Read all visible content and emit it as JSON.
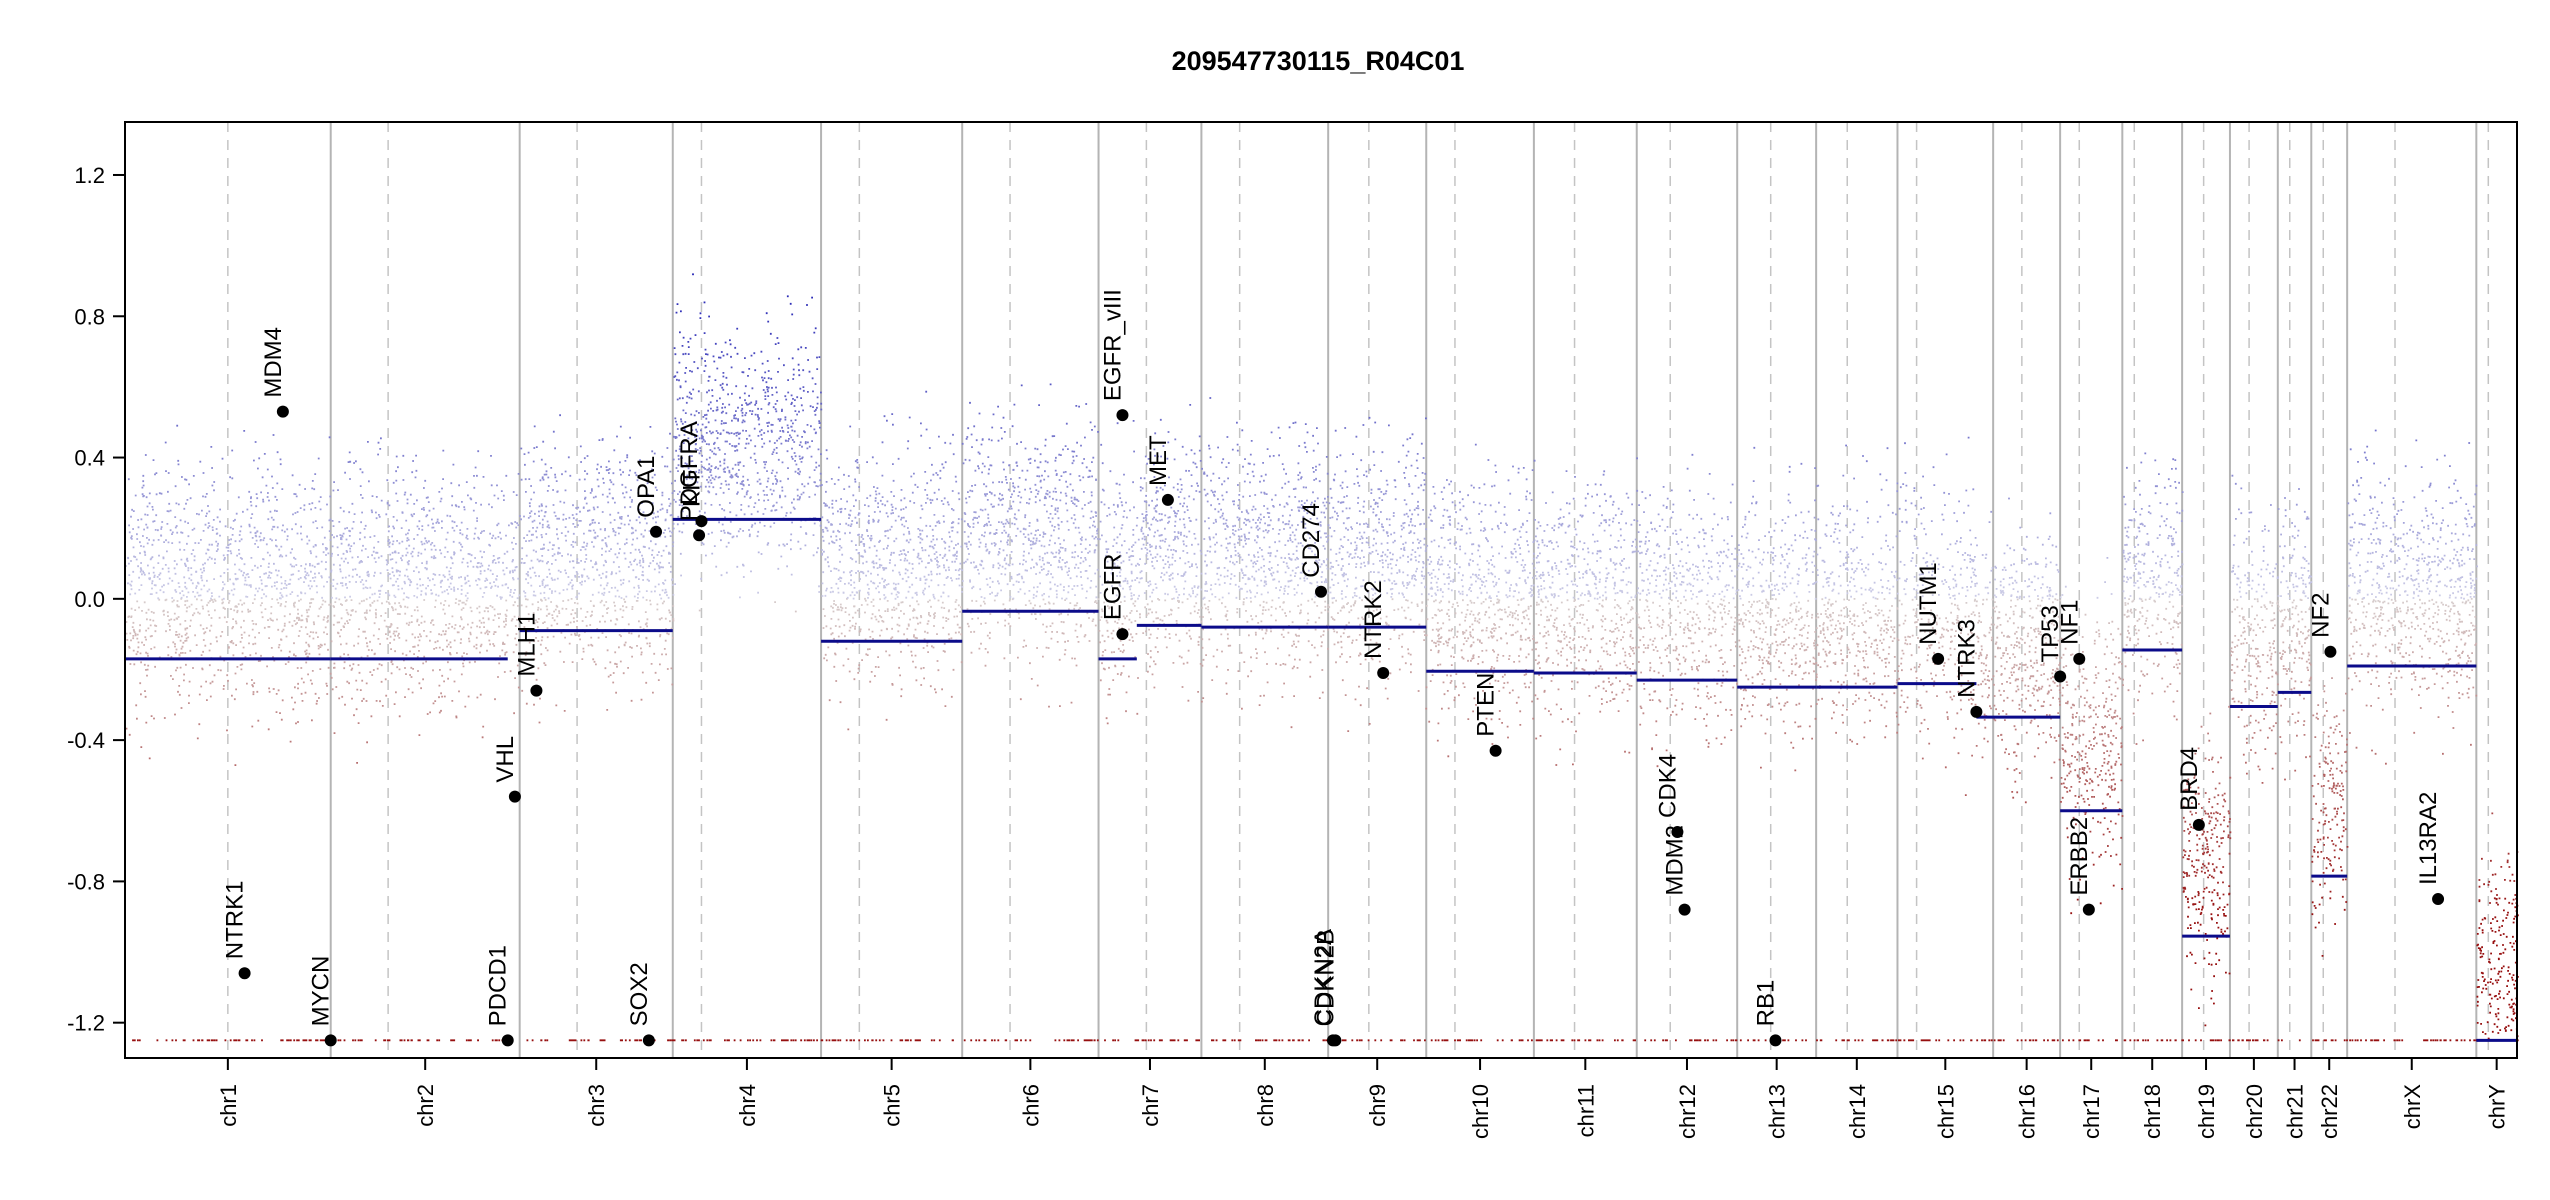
{
  "chart_data": {
    "type": "scatter",
    "title": "209547730115_R04C01",
    "xlabel": "",
    "ylabel": "",
    "ylim": [
      -1.3,
      1.35
    ],
    "y_ticks": [
      -1.2,
      -0.8,
      -0.4,
      0.0,
      0.4,
      0.8,
      1.2
    ],
    "y_tick_labels": [
      "-1.2",
      "-0.8",
      "-0.4",
      "0.0",
      "0.4",
      "0.8",
      "1.2"
    ],
    "grid": false,
    "colors": {
      "gain": "#2b2bb8",
      "loss": "#a01010",
      "segment": "#0b0b8a",
      "chrom_border": "#b4b4b4",
      "centromere": "#c4c4c4",
      "gene_dot": "#000000"
    },
    "chromosomes": [
      {
        "name": "chr1",
        "start": 0.0,
        "end": 0.086,
        "centromere": 0.043
      },
      {
        "name": "chr2",
        "start": 0.086,
        "end": 0.165,
        "centromere": 0.11
      },
      {
        "name": "chr3",
        "start": 0.165,
        "end": 0.229,
        "centromere": 0.189
      },
      {
        "name": "chr4",
        "start": 0.229,
        "end": 0.291,
        "centromere": 0.241
      },
      {
        "name": "chr5",
        "start": 0.291,
        "end": 0.35,
        "centromere": 0.307
      },
      {
        "name": "chr6",
        "start": 0.35,
        "end": 0.407,
        "centromere": 0.37
      },
      {
        "name": "chr7",
        "start": 0.407,
        "end": 0.45,
        "centromere": 0.427
      },
      {
        "name": "chr8",
        "start": 0.45,
        "end": 0.503,
        "centromere": 0.466
      },
      {
        "name": "chr9",
        "start": 0.503,
        "end": 0.544,
        "centromere": 0.52
      },
      {
        "name": "chr10",
        "start": 0.544,
        "end": 0.589,
        "centromere": 0.556
      },
      {
        "name": "chr11",
        "start": 0.589,
        "end": 0.632,
        "centromere": 0.606
      },
      {
        "name": "chr12",
        "start": 0.632,
        "end": 0.674,
        "centromere": 0.646
      },
      {
        "name": "chr13",
        "start": 0.674,
        "end": 0.707,
        "centromere": 0.688
      },
      {
        "name": "chr14",
        "start": 0.707,
        "end": 0.741,
        "centromere": 0.72
      },
      {
        "name": "chr15",
        "start": 0.741,
        "end": 0.781,
        "centromere": 0.749
      },
      {
        "name": "chr16",
        "start": 0.781,
        "end": 0.809,
        "centromere": 0.793
      },
      {
        "name": "chr17",
        "start": 0.809,
        "end": 0.835,
        "centromere": 0.817
      },
      {
        "name": "chr18",
        "start": 0.835,
        "end": 0.86,
        "centromere": 0.84
      },
      {
        "name": "chr19",
        "start": 0.86,
        "end": 0.88,
        "centromere": 0.869
      },
      {
        "name": "chr20",
        "start": 0.88,
        "end": 0.9,
        "centromere": 0.888
      },
      {
        "name": "chr21",
        "start": 0.9,
        "end": 0.914,
        "centromere": 0.905
      },
      {
        "name": "chr22",
        "start": 0.914,
        "end": 0.929,
        "centromere": 0.919
      },
      {
        "name": "chrX",
        "start": 0.929,
        "end": 0.983,
        "centromere": 0.949
      },
      {
        "name": "chrY",
        "start": 0.983,
        "end": 1.0,
        "centromere": 0.988
      }
    ],
    "segments": [
      {
        "chrom": "chr1",
        "start": 0.0,
        "end": 0.086,
        "value": -0.17
      },
      {
        "chrom": "chr2",
        "start": 0.086,
        "end": 0.16,
        "value": -0.17
      },
      {
        "chrom": "chr3",
        "start": 0.165,
        "end": 0.229,
        "value": -0.09
      },
      {
        "chrom": "chr4",
        "start": 0.229,
        "end": 0.291,
        "value": 0.225
      },
      {
        "chrom": "chr5",
        "start": 0.291,
        "end": 0.35,
        "value": -0.12
      },
      {
        "chrom": "chr6",
        "start": 0.35,
        "end": 0.407,
        "value": -0.035
      },
      {
        "chrom": "chr7",
        "start": 0.407,
        "end": 0.423,
        "value": -0.17
      },
      {
        "chrom": "chr7",
        "start": 0.423,
        "end": 0.45,
        "value": -0.075
      },
      {
        "chrom": "chr8",
        "start": 0.45,
        "end": 0.503,
        "value": -0.08
      },
      {
        "chrom": "chr9",
        "start": 0.503,
        "end": 0.544,
        "value": -0.08
      },
      {
        "chrom": "chr10",
        "start": 0.544,
        "end": 0.589,
        "value": -0.205
      },
      {
        "chrom": "chr11",
        "start": 0.589,
        "end": 0.632,
        "value": -0.21
      },
      {
        "chrom": "chr12",
        "start": 0.632,
        "end": 0.674,
        "value": -0.23
      },
      {
        "chrom": "chr13",
        "start": 0.674,
        "end": 0.707,
        "value": -0.25
      },
      {
        "chrom": "chr14",
        "start": 0.707,
        "end": 0.741,
        "value": -0.25
      },
      {
        "chrom": "chr15",
        "start": 0.741,
        "end": 0.774,
        "value": -0.24
      },
      {
        "chrom": "chr16",
        "start": 0.774,
        "end": 0.809,
        "value": -0.335
      },
      {
        "chrom": "chr17",
        "start": 0.809,
        "end": 0.835,
        "value": -0.6
      },
      {
        "chrom": "chr18",
        "start": 0.835,
        "end": 0.86,
        "value": -0.145
      },
      {
        "chrom": "chr19",
        "start": 0.86,
        "end": 0.88,
        "value": -0.955
      },
      {
        "chrom": "chr20",
        "start": 0.88,
        "end": 0.9,
        "value": -0.305
      },
      {
        "chrom": "chr21",
        "start": 0.9,
        "end": 0.914,
        "value": -0.265
      },
      {
        "chrom": "chr22",
        "start": 0.914,
        "end": 0.929,
        "value": -0.785
      },
      {
        "chrom": "chrX",
        "start": 0.929,
        "end": 0.983,
        "value": -0.19
      },
      {
        "chrom": "chrY",
        "start": 0.983,
        "end": 1.0,
        "value": -1.25
      }
    ],
    "genes": [
      {
        "name": "NTRK1",
        "x": 0.05,
        "value": -1.06
      },
      {
        "name": "MDM4",
        "x": 0.066,
        "value": 0.53
      },
      {
        "name": "MYCN",
        "x": 0.086,
        "value": -1.25
      },
      {
        "name": "PDCD1",
        "x": 0.16,
        "value": -1.25
      },
      {
        "name": "VHL",
        "x": 0.163,
        "value": -0.56
      },
      {
        "name": "MLH1",
        "x": 0.172,
        "value": -0.26
      },
      {
        "name": "SOX2",
        "x": 0.219,
        "value": -1.25
      },
      {
        "name": "OPA1",
        "x": 0.222,
        "value": 0.19
      },
      {
        "name": "PDGFRA",
        "x": 0.24,
        "value": 0.18
      },
      {
        "name": "KIT",
        "x": 0.241,
        "value": 0.22
      },
      {
        "name": "EGFR_vIII",
        "x": 0.417,
        "value": 0.52
      },
      {
        "name": "EGFR",
        "x": 0.417,
        "value": -0.1
      },
      {
        "name": "MET",
        "x": 0.436,
        "value": 0.28
      },
      {
        "name": "CD274",
        "x": 0.5,
        "value": 0.02
      },
      {
        "name": "CDKN2A",
        "x": 0.505,
        "value": -1.25
      },
      {
        "name": "CDKN2B",
        "x": 0.506,
        "value": -1.25
      },
      {
        "name": "NTRK2",
        "x": 0.526,
        "value": -0.21
      },
      {
        "name": "PTEN",
        "x": 0.573,
        "value": -0.43
      },
      {
        "name": "CDK4",
        "x": 0.649,
        "value": -0.66
      },
      {
        "name": "MDM2",
        "x": 0.652,
        "value": -0.88
      },
      {
        "name": "RB1",
        "x": 0.69,
        "value": -1.25
      },
      {
        "name": "NUTM1",
        "x": 0.758,
        "value": -0.17
      },
      {
        "name": "NTRK3",
        "x": 0.774,
        "value": -0.32
      },
      {
        "name": "TP53",
        "x": 0.809,
        "value": -0.22
      },
      {
        "name": "NF1",
        "x": 0.817,
        "value": -0.17
      },
      {
        "name": "ERBB2",
        "x": 0.821,
        "value": -0.88
      },
      {
        "name": "BRD4",
        "x": 0.867,
        "value": -0.64
      },
      {
        "name": "NF2",
        "x": 0.922,
        "value": -0.15
      },
      {
        "name": "IL13RA2",
        "x": 0.967,
        "value": -0.85
      }
    ]
  }
}
